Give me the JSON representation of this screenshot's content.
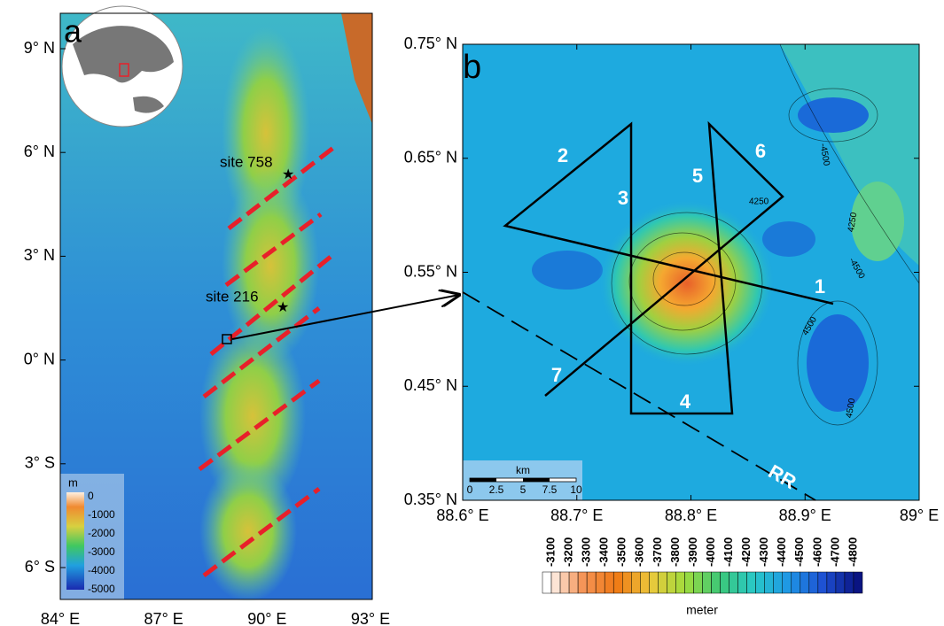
{
  "panel_a": {
    "label": "a",
    "lat_labels": [
      "9° N",
      "6° N",
      "3° N",
      "0° N",
      "3° S",
      "6° S"
    ],
    "lon_labels": [
      "84° E",
      "87° E",
      "90° E",
      "93° E"
    ],
    "sites": [
      "site 758",
      "site 216"
    ],
    "legend": {
      "unit": "m",
      "labels": [
        "0",
        "-1000",
        "-2000",
        "-3000",
        "-4000",
        "-5000"
      ]
    }
  },
  "panel_b": {
    "label": "b",
    "lat_labels": [
      "0.75° N",
      "0.65° N",
      "0.55° N",
      "0.45° N",
      "0.35° N"
    ],
    "lon_labels": [
      "88.6° E",
      "88.7° E",
      "88.8° E",
      "88.9° E",
      "89° E"
    ],
    "tracks": [
      "1",
      "2",
      "3",
      "4",
      "5",
      "6",
      "7"
    ],
    "ridge_label": "RR",
    "contour_labels": [
      "-4500",
      "4250",
      "4250",
      "-4500",
      "4500",
      "4500"
    ],
    "scale_bar": {
      "unit": "km",
      "labels": [
        "0",
        "2.5",
        "5",
        "7.5",
        "10"
      ]
    },
    "colorbar": {
      "labels": [
        "-3100",
        "-3200",
        "-3300",
        "-3400",
        "-3500",
        "-3600",
        "-3700",
        "-3800",
        "-3900",
        "-4000",
        "-4100",
        "-4200",
        "-4300",
        "-4400",
        "-4500",
        "-4600",
        "-4700",
        "-4800"
      ],
      "unit": "meter"
    }
  }
}
